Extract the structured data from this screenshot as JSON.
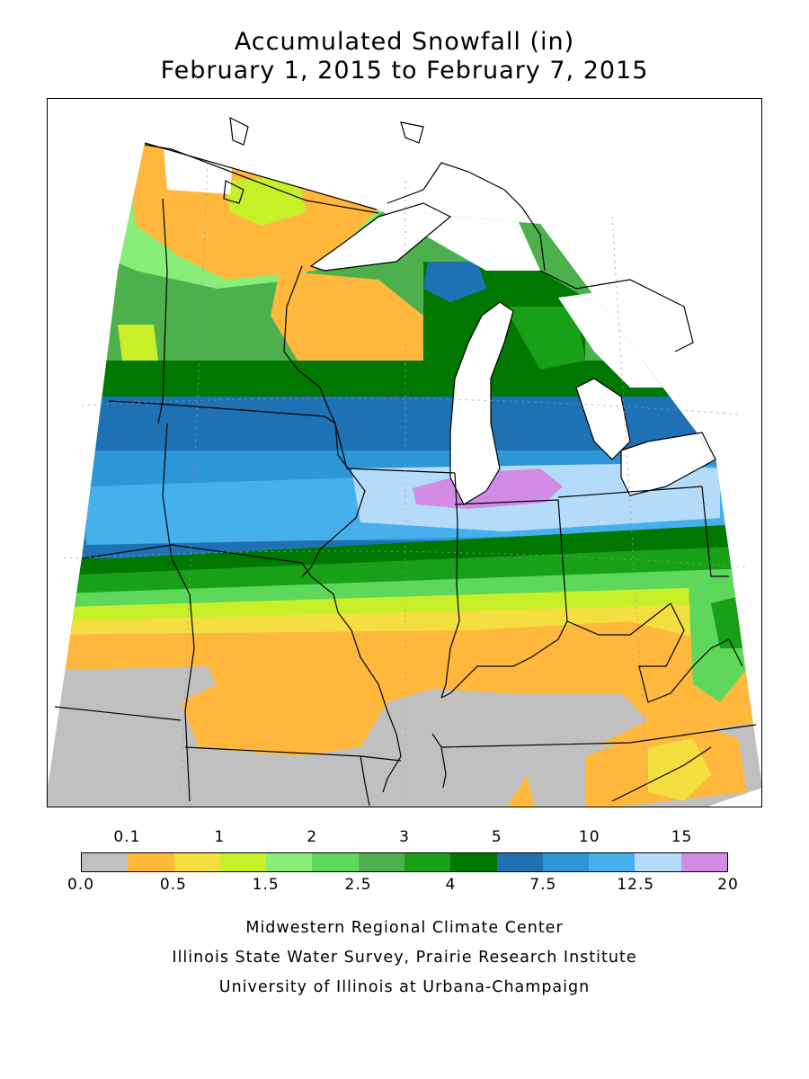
{
  "title": "Accumulated Snowfall (in)",
  "subtitle": "February 1, 2015 to February 7, 2015",
  "legend": {
    "bins": [
      {
        "color": "#c0c0c0"
      },
      {
        "color": "#ffb83c"
      },
      {
        "color": "#f4de40"
      },
      {
        "color": "#c8f028"
      },
      {
        "color": "#88ee78"
      },
      {
        "color": "#5ed85a"
      },
      {
        "color": "#4cb04c"
      },
      {
        "color": "#18a018"
      },
      {
        "color": "#007800"
      },
      {
        "color": "#1e72b4"
      },
      {
        "color": "#2d96d7"
      },
      {
        "color": "#46b0ec"
      },
      {
        "color": "#b4dcfa"
      },
      {
        "color": "#d28ce6"
      }
    ],
    "top_labels": [
      "0.1",
      "1",
      "2",
      "3",
      "5",
      "10",
      "15"
    ],
    "bottom_labels": [
      "0.0",
      "0.5",
      "1.5",
      "2.5",
      "4",
      "7.5",
      "12.5",
      "20"
    ]
  },
  "credits": [
    "Midwestern Regional Climate Center",
    "Illinois State Water Survey, Prairie Research Institute",
    "University of Illinois at Urbana-Champaign"
  ]
}
